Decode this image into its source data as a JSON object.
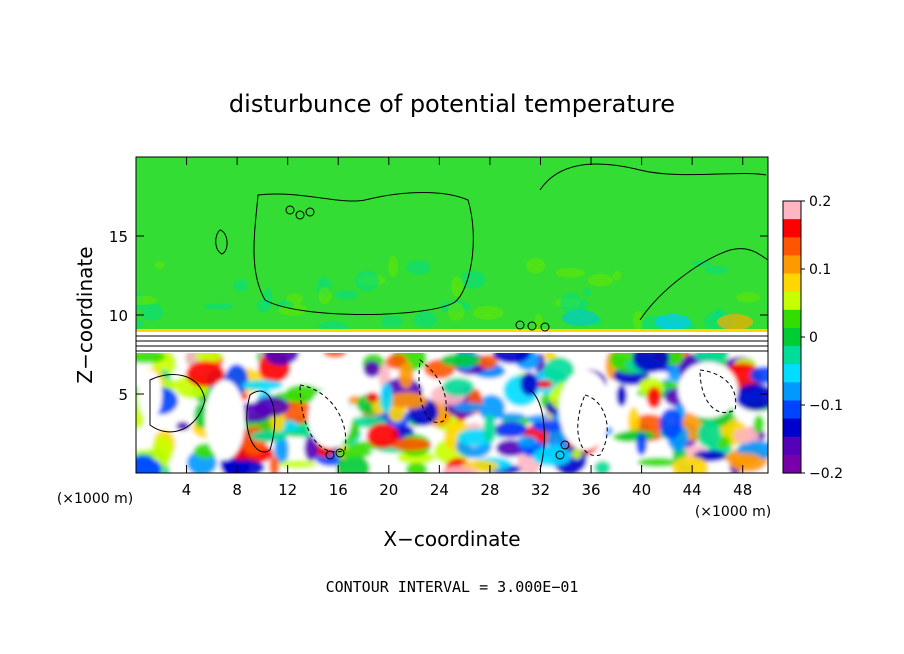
{
  "chart_data": {
    "type": "heatmap",
    "title": "disturbunce of potential temperature",
    "xlabel": "X−coordinate",
    "ylabel": "Z−coordinate",
    "x_unit": "(×1000 m)",
    "z_unit": "(×1000 m)",
    "xlim": [
      0,
      50
    ],
    "ylim": [
      0,
      20
    ],
    "x_ticks": [
      4,
      8,
      12,
      16,
      20,
      24,
      28,
      32,
      36,
      40,
      44,
      48
    ],
    "y_ticks": [
      5,
      10,
      15
    ],
    "colorbar": {
      "range": [
        -0.2,
        0.2
      ],
      "tick_values": [
        0.2,
        0.1,
        0,
        -0.1,
        -0.2
      ],
      "tick_labels": [
        "0.2",
        "0.1",
        "0",
        "−0.1",
        "−0.2"
      ],
      "colors": [
        "#ffb6c1",
        "#ff0000",
        "#ff5500",
        "#ff9900",
        "#ffd700",
        "#c8ff00",
        "#33dd00",
        "#00cc33",
        "#00dd99",
        "#00ddff",
        "#0099ff",
        "#0044ff",
        "#0000cc",
        "#5500bb",
        "#7700aa"
      ]
    },
    "field_colors": {
      "upper_layer": "#33dd33",
      "interface": "#ffffff",
      "lower_layer": "#ffffff"
    },
    "annotation": "CONTOUR INTERVAL = 3.000E−01"
  }
}
